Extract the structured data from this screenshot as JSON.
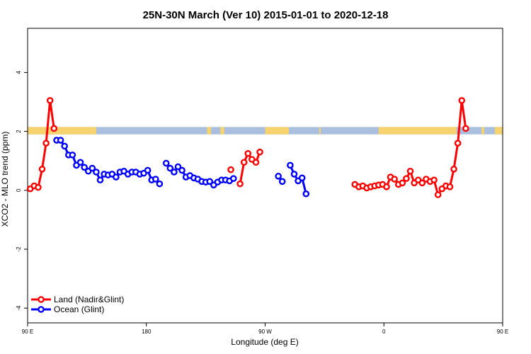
{
  "chart_data": {
    "type": "line",
    "title": "25N-30N March (Ver 10)   2015-01-01 to 2020-12-18",
    "xlabel": "Longitude (deg E)",
    "ylabel": "XCO2 - MLO trend (ppm)",
    "xlim": [
      90,
      450
    ],
    "ylim": [
      -4.5,
      5.5
    ],
    "x_ticks": [
      {
        "value": 90,
        "label": "90 E"
      },
      {
        "value": 180,
        "label": "180"
      },
      {
        "value": 270,
        "label": "90 W"
      },
      {
        "value": 360,
        "label": "0"
      },
      {
        "value": 450,
        "label": "90 E"
      },
      {
        "value": 540,
        "label": "180"
      }
    ],
    "y_ticks": [
      {
        "value": -4,
        "label": "-4"
      },
      {
        "value": -2,
        "label": "-2"
      },
      {
        "value": 0,
        "label": "0"
      },
      {
        "value": 2,
        "label": "2"
      },
      {
        "value": 4,
        "label": "4"
      }
    ],
    "grid": false,
    "legend_position": "bottom-left",
    "land_ocean_band": {
      "y_range": [
        1.9,
        2.15
      ],
      "land_color": "#F7D370",
      "ocean_color": "#A9BFDD",
      "land_segments": [
        [
          90,
          142
        ],
        [
          226,
          229
        ],
        [
          236,
          239
        ],
        [
          270,
          288
        ],
        [
          311,
          312
        ],
        [
          356,
          415
        ],
        [
          417,
          417.5
        ],
        [
          434,
          436
        ],
        [
          444,
          540
        ]
      ]
    },
    "series": [
      {
        "name": "Land (Nadir&Glint)",
        "color": "#FF0000",
        "points": [
          [
            92,
            0.05
          ],
          [
            95,
            0.15
          ],
          [
            98,
            0.1
          ],
          [
            101,
            0.72
          ],
          [
            104,
            1.6
          ],
          [
            107,
            3.05
          ],
          [
            110,
            2.1
          ],
          null,
          [
            244,
            0.7
          ],
          null,
          [
            251,
            0.22
          ],
          [
            254,
            0.95
          ],
          [
            257,
            1.25
          ],
          [
            260,
            1.05
          ],
          [
            263,
            0.95
          ],
          [
            266,
            1.3
          ],
          null,
          [
            338,
            0.2
          ],
          [
            341,
            0.12
          ],
          [
            344,
            0.15
          ],
          [
            347,
            0.08
          ],
          [
            350,
            0.12
          ],
          [
            353,
            0.15
          ],
          [
            356,
            0.18
          ],
          [
            359,
            0.2
          ],
          [
            362,
            0.12
          ],
          [
            365,
            0.45
          ],
          [
            368,
            0.38
          ],
          [
            371,
            0.2
          ],
          [
            374,
            0.25
          ],
          [
            377,
            0.4
          ],
          [
            380,
            0.65
          ],
          [
            383,
            0.25
          ],
          [
            386,
            0.35
          ],
          [
            389,
            0.25
          ],
          [
            392,
            0.38
          ],
          [
            395,
            0.3
          ],
          [
            398,
            0.35
          ],
          [
            401,
            -0.15
          ],
          [
            404,
            0.05
          ],
          [
            407,
            0.15
          ],
          [
            410,
            0.12
          ],
          [
            413,
            0.72
          ],
          [
            416,
            1.6
          ],
          [
            419,
            3.05
          ],
          [
            422,
            2.1
          ]
        ]
      },
      {
        "name": "Ocean (Glint)",
        "color": "#0000FF",
        "points": [
          [
            112,
            1.7
          ],
          [
            115,
            1.7
          ],
          [
            118,
            1.5
          ],
          [
            121,
            1.2
          ],
          [
            124,
            1.2
          ],
          [
            127,
            0.85
          ],
          [
            130,
            0.95
          ],
          [
            133,
            0.78
          ],
          [
            136,
            0.65
          ],
          [
            139,
            0.75
          ],
          [
            142,
            0.62
          ],
          [
            145,
            0.35
          ],
          [
            148,
            0.55
          ],
          [
            151,
            0.52
          ],
          [
            154,
            0.55
          ],
          [
            157,
            0.45
          ],
          [
            160,
            0.62
          ],
          [
            163,
            0.65
          ],
          [
            166,
            0.55
          ],
          [
            169,
            0.62
          ],
          [
            172,
            0.62
          ],
          [
            175,
            0.55
          ],
          [
            178,
            0.58
          ],
          [
            181,
            0.68
          ],
          [
            184,
            0.35
          ],
          [
            187,
            0.38
          ],
          [
            190,
            0.22
          ],
          null,
          [
            195,
            0.92
          ],
          [
            198,
            0.75
          ],
          [
            201,
            0.62
          ],
          [
            204,
            0.8
          ],
          [
            207,
            0.68
          ],
          [
            210,
            0.45
          ],
          [
            213,
            0.5
          ],
          [
            216,
            0.42
          ],
          [
            219,
            0.38
          ],
          [
            222,
            0.3
          ],
          [
            225,
            0.28
          ],
          [
            228,
            0.3
          ],
          [
            231,
            0.18
          ],
          [
            234,
            0.28
          ],
          [
            237,
            0.35
          ],
          [
            240,
            0.35
          ],
          [
            243,
            0.32
          ],
          [
            246,
            0.4
          ],
          null,
          [
            280,
            0.48
          ],
          [
            283,
            0.3
          ],
          null,
          [
            289,
            0.85
          ],
          [
            292,
            0.55
          ],
          [
            295,
            0.32
          ],
          [
            298,
            0.42
          ],
          [
            301,
            -0.12
          ]
        ]
      }
    ]
  }
}
